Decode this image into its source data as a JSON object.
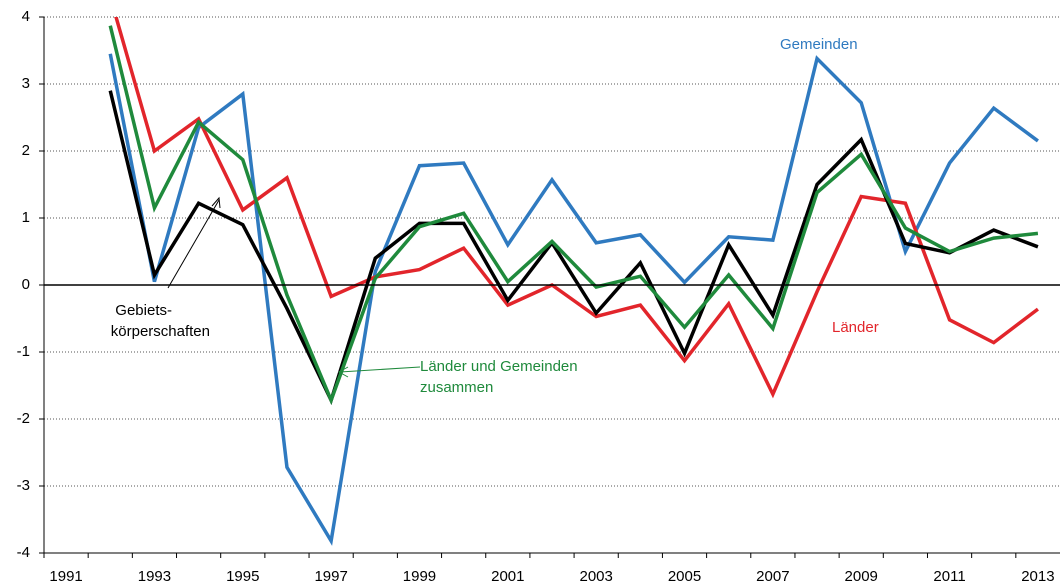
{
  "chart_data": {
    "type": "line",
    "categories": [
      "1991",
      null,
      "1993",
      null,
      "1995",
      null,
      "1997",
      null,
      "1999",
      null,
      "2001",
      null,
      "2003",
      null,
      "2005",
      null,
      "2007",
      null,
      "2009",
      null,
      "2011",
      null,
      "2013"
    ],
    "ylim": [
      -4,
      4
    ],
    "yticks": [
      -4,
      -3,
      -2,
      -1,
      0,
      1,
      2,
      3,
      4
    ],
    "grid": true,
    "series": [
      {
        "name": "Gemeinden",
        "color": "#2f7ac0",
        "values": [
          null,
          3.45,
          0.05,
          2.35,
          2.85,
          -2.72,
          -3.82,
          0.2,
          1.78,
          1.82,
          0.6,
          1.57,
          0.63,
          0.75,
          0.04,
          0.72,
          0.67,
          3.38,
          2.72,
          0.5,
          1.82,
          2.64,
          2.15
        ]
      },
      {
        "name": "Länder",
        "color": "#e2252b",
        "values": [
          null,
          4.3,
          2.0,
          2.48,
          1.12,
          1.6,
          -0.17,
          0.12,
          0.23,
          0.55,
          -0.3,
          0.0,
          -0.47,
          -0.3,
          -1.13,
          -0.28,
          -1.63,
          -0.1,
          1.32,
          1.22,
          -0.52,
          -0.86,
          -0.36
        ]
      },
      {
        "name": [
          "Gebiets-",
          "körperschaften"
        ],
        "color": "#000000",
        "values": [
          null,
          2.9,
          0.15,
          1.22,
          0.9,
          -0.35,
          -1.72,
          0.4,
          0.92,
          0.92,
          -0.23,
          0.63,
          -0.42,
          0.33,
          -1.02,
          0.6,
          -0.45,
          1.5,
          2.17,
          0.62,
          0.48,
          0.82,
          0.57
        ]
      },
      {
        "name": [
          "Länder und Gemeinden",
          "zusammen"
        ],
        "color": "#1f8a3c",
        "values": [
          null,
          3.87,
          1.15,
          2.43,
          1.87,
          -0.15,
          -1.72,
          0.1,
          0.87,
          1.07,
          0.05,
          0.65,
          -0.03,
          0.13,
          -0.63,
          0.15,
          -0.65,
          1.38,
          1.95,
          0.85,
          0.5,
          0.7,
          0.77
        ]
      }
    ]
  }
}
